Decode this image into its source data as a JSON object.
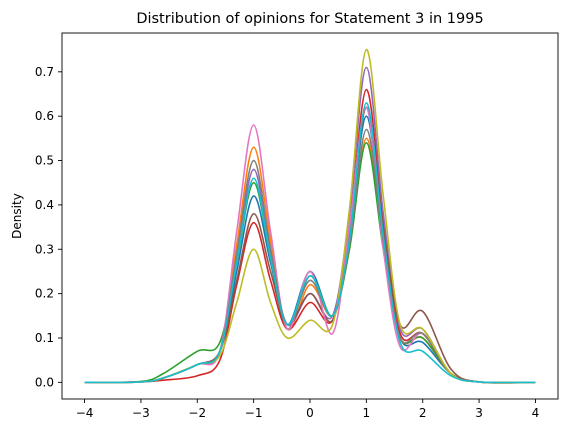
{
  "chart_data": {
    "type": "line",
    "title": "Distribution of opinions for Statement 3 in 1995",
    "xlabel": "",
    "ylabel": "Density",
    "xlim": [
      -4.4,
      4.4
    ],
    "ylim": [
      -0.0375,
      0.7875
    ],
    "xticks": [
      -4,
      -3,
      -2,
      -1,
      0,
      1,
      2,
      3,
      4
    ],
    "yticks": [
      0.0,
      0.1,
      0.2,
      0.3,
      0.4,
      0.5,
      0.6,
      0.7
    ],
    "ytick_labels": [
      "0.0",
      "0.1",
      "0.2",
      "0.3",
      "0.4",
      "0.5",
      "0.6",
      "0.7"
    ],
    "grid": false,
    "legend": "none",
    "x": [
      -4.0,
      -3.0,
      -2.6,
      -2.0,
      -1.6,
      -1.3,
      -1.0,
      -0.7,
      -0.4,
      0.0,
      0.4,
      0.7,
      1.0,
      1.3,
      1.6,
      2.0,
      2.5,
      3.0,
      4.0
    ],
    "series": [
      {
        "color": "#1f77b4",
        "values": [
          0.0,
          0.001,
          0.01,
          0.04,
          0.07,
          0.25,
          0.42,
          0.27,
          0.13,
          0.25,
          0.15,
          0.33,
          0.6,
          0.33,
          0.1,
          0.09,
          0.02,
          0.001,
          0.0
        ]
      },
      {
        "color": "#ff7f0e",
        "values": [
          0.0,
          0.001,
          0.01,
          0.04,
          0.07,
          0.31,
          0.53,
          0.32,
          0.12,
          0.22,
          0.15,
          0.3,
          0.55,
          0.31,
          0.1,
          0.1,
          0.02,
          0.001,
          0.0
        ]
      },
      {
        "color": "#2ca02c",
        "values": [
          0.0,
          0.002,
          0.02,
          0.07,
          0.09,
          0.27,
          0.45,
          0.28,
          0.12,
          0.24,
          0.15,
          0.3,
          0.54,
          0.3,
          0.1,
          0.1,
          0.02,
          0.001,
          0.0
        ]
      },
      {
        "color": "#d62728",
        "values": [
          0.0,
          0.001,
          0.005,
          0.015,
          0.05,
          0.22,
          0.36,
          0.23,
          0.12,
          0.18,
          0.14,
          0.35,
          0.66,
          0.36,
          0.11,
          0.11,
          0.02,
          0.001,
          0.0
        ]
      },
      {
        "color": "#9467bd",
        "values": [
          0.0,
          0.001,
          0.01,
          0.04,
          0.07,
          0.28,
          0.48,
          0.29,
          0.13,
          0.2,
          0.15,
          0.38,
          0.71,
          0.38,
          0.12,
          0.12,
          0.02,
          0.001,
          0.0
        ]
      },
      {
        "color": "#8c564b",
        "values": [
          0.0,
          0.001,
          0.01,
          0.04,
          0.07,
          0.23,
          0.38,
          0.25,
          0.13,
          0.2,
          0.14,
          0.33,
          0.62,
          0.35,
          0.13,
          0.16,
          0.03,
          0.001,
          0.0
        ]
      },
      {
        "color": "#e377c2",
        "values": [
          0.0,
          0.001,
          0.01,
          0.04,
          0.07,
          0.34,
          0.58,
          0.34,
          0.12,
          0.25,
          0.11,
          0.35,
          0.62,
          0.3,
          0.08,
          0.11,
          0.02,
          0.001,
          0.0
        ]
      },
      {
        "color": "#7f7f7f",
        "values": [
          0.0,
          0.001,
          0.01,
          0.04,
          0.07,
          0.29,
          0.5,
          0.3,
          0.13,
          0.23,
          0.15,
          0.31,
          0.57,
          0.32,
          0.1,
          0.11,
          0.02,
          0.001,
          0.0
        ]
      },
      {
        "color": "#bcbd22",
        "values": [
          0.0,
          0.001,
          0.01,
          0.04,
          0.06,
          0.18,
          0.3,
          0.18,
          0.1,
          0.14,
          0.13,
          0.39,
          0.75,
          0.42,
          0.13,
          0.12,
          0.02,
          0.001,
          0.0
        ]
      },
      {
        "color": "#17becf",
        "values": [
          0.0,
          0.001,
          0.01,
          0.04,
          0.07,
          0.27,
          0.46,
          0.28,
          0.13,
          0.24,
          0.15,
          0.32,
          0.63,
          0.33,
          0.09,
          0.07,
          0.015,
          0.001,
          0.0
        ]
      }
    ]
  }
}
